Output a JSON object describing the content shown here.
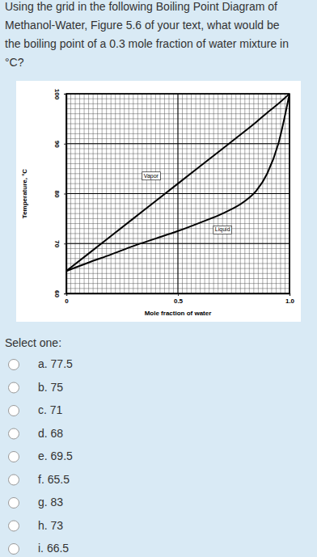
{
  "question": [
    "Using the grid in the following Boiling Point Diagram of",
    "Methanol-Water, Figure 5.6 of your text, what would be",
    "the boiling point of a 0.3 mole fraction of water mixture in",
    "°C?"
  ],
  "chart_data": {
    "type": "line",
    "x_label": "Mole fraction of water",
    "y_label": "Temperature, °C",
    "x": [
      0,
      0.1,
      0.2,
      0.3,
      0.4,
      0.5,
      0.6,
      0.7,
      0.8,
      0.85,
      0.9,
      0.95,
      1
    ],
    "series": [
      {
        "name": "Vapor",
        "color": "#000000",
        "line_style": "solid",
        "label_x": 0.38,
        "label_y": 83.5,
        "values": [
          64.5,
          68,
          71.5,
          75,
          78.5,
          82,
          85.5,
          89,
          92.5,
          94.3,
          96.2,
          98,
          100
        ]
      },
      {
        "name": "Liquid",
        "color": "#000000",
        "line_style": "solid",
        "label_x": 0.7,
        "label_y": 72.7,
        "values": [
          64.5,
          66.2,
          67.8,
          69.5,
          71,
          72.5,
          74.2,
          76,
          78.5,
          80.5,
          84,
          90,
          100
        ]
      }
    ],
    "xlim": [
      0,
      1
    ],
    "xticks": [
      0,
      0.5,
      {
        "value": 1,
        "label": "1.0"
      }
    ],
    "ylim": [
      60,
      100
    ],
    "yticks": [
      60,
      70,
      80,
      90,
      100
    ],
    "grid": true
  },
  "prompt": "Select one:",
  "options": [
    "a. 77.5",
    "b. 75",
    "c. 71",
    "d. 68",
    "e. 69.5",
    "f. 65.5",
    "g. 83",
    "h. 73",
    "i. 66.5"
  ]
}
